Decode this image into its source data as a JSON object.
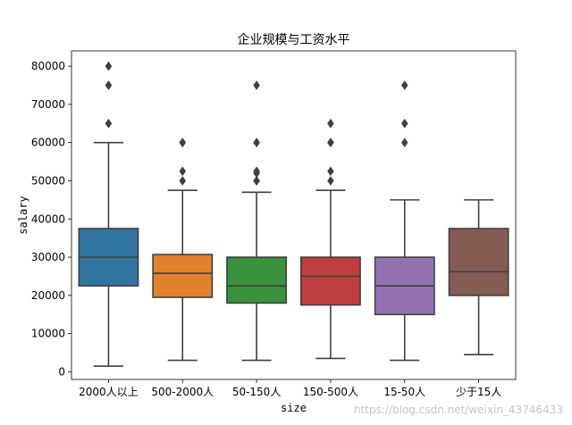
{
  "chart_data": {
    "type": "box",
    "title": "企业规模与工资水平",
    "xlabel": "size",
    "ylabel": "salary",
    "ylim": [
      -2000,
      84000
    ],
    "yticks": [
      0,
      10000,
      20000,
      30000,
      40000,
      50000,
      60000,
      70000,
      80000
    ],
    "ytick_labels": [
      "0",
      "10000",
      "20000",
      "30000",
      "40000",
      "50000",
      "60000",
      "70000",
      "80000"
    ],
    "categories": [
      "2000人以上",
      "500-2000人",
      "50-150人",
      "150-500人",
      "15-50人",
      "少于15人"
    ],
    "boxes": [
      {
        "category": "2000人以上",
        "color": "#3274a1",
        "whislo": 1500,
        "q1": 22500,
        "med": 30000,
        "q3": 37500,
        "whishi": 60000,
        "fliers": [
          65000,
          75000,
          75000,
          80000
        ]
      },
      {
        "category": "500-2000人",
        "color": "#e1812c",
        "whislo": 3000,
        "q1": 19500,
        "med": 25800,
        "q3": 30700,
        "whishi": 47500,
        "fliers": [
          50000,
          52500,
          60000,
          60000
        ]
      },
      {
        "category": "50-150人",
        "color": "#3a923a",
        "whislo": 3000,
        "q1": 18000,
        "med": 22500,
        "q3": 30000,
        "whishi": 47000,
        "fliers": [
          50000,
          50000,
          52000,
          52500,
          60000,
          60000,
          75000
        ]
      },
      {
        "category": "150-500人",
        "color": "#c03d3e",
        "whislo": 3500,
        "q1": 17500,
        "med": 25000,
        "q3": 30000,
        "whishi": 47500,
        "fliers": [
          50000,
          52500,
          60000,
          60000,
          65000
        ]
      },
      {
        "category": "15-50人",
        "color": "#9372b2",
        "whislo": 3000,
        "q1": 15000,
        "med": 22500,
        "q3": 30000,
        "whishi": 45000,
        "fliers": [
          60000,
          65000,
          75000
        ]
      },
      {
        "category": "少于15人",
        "color": "#845b53",
        "whislo": 4500,
        "q1": 20000,
        "med": 26200,
        "q3": 37500,
        "whishi": 45000,
        "fliers": []
      }
    ],
    "grid": false
  },
  "watermark": "https://blog.csdn.net/weixin_43746433"
}
